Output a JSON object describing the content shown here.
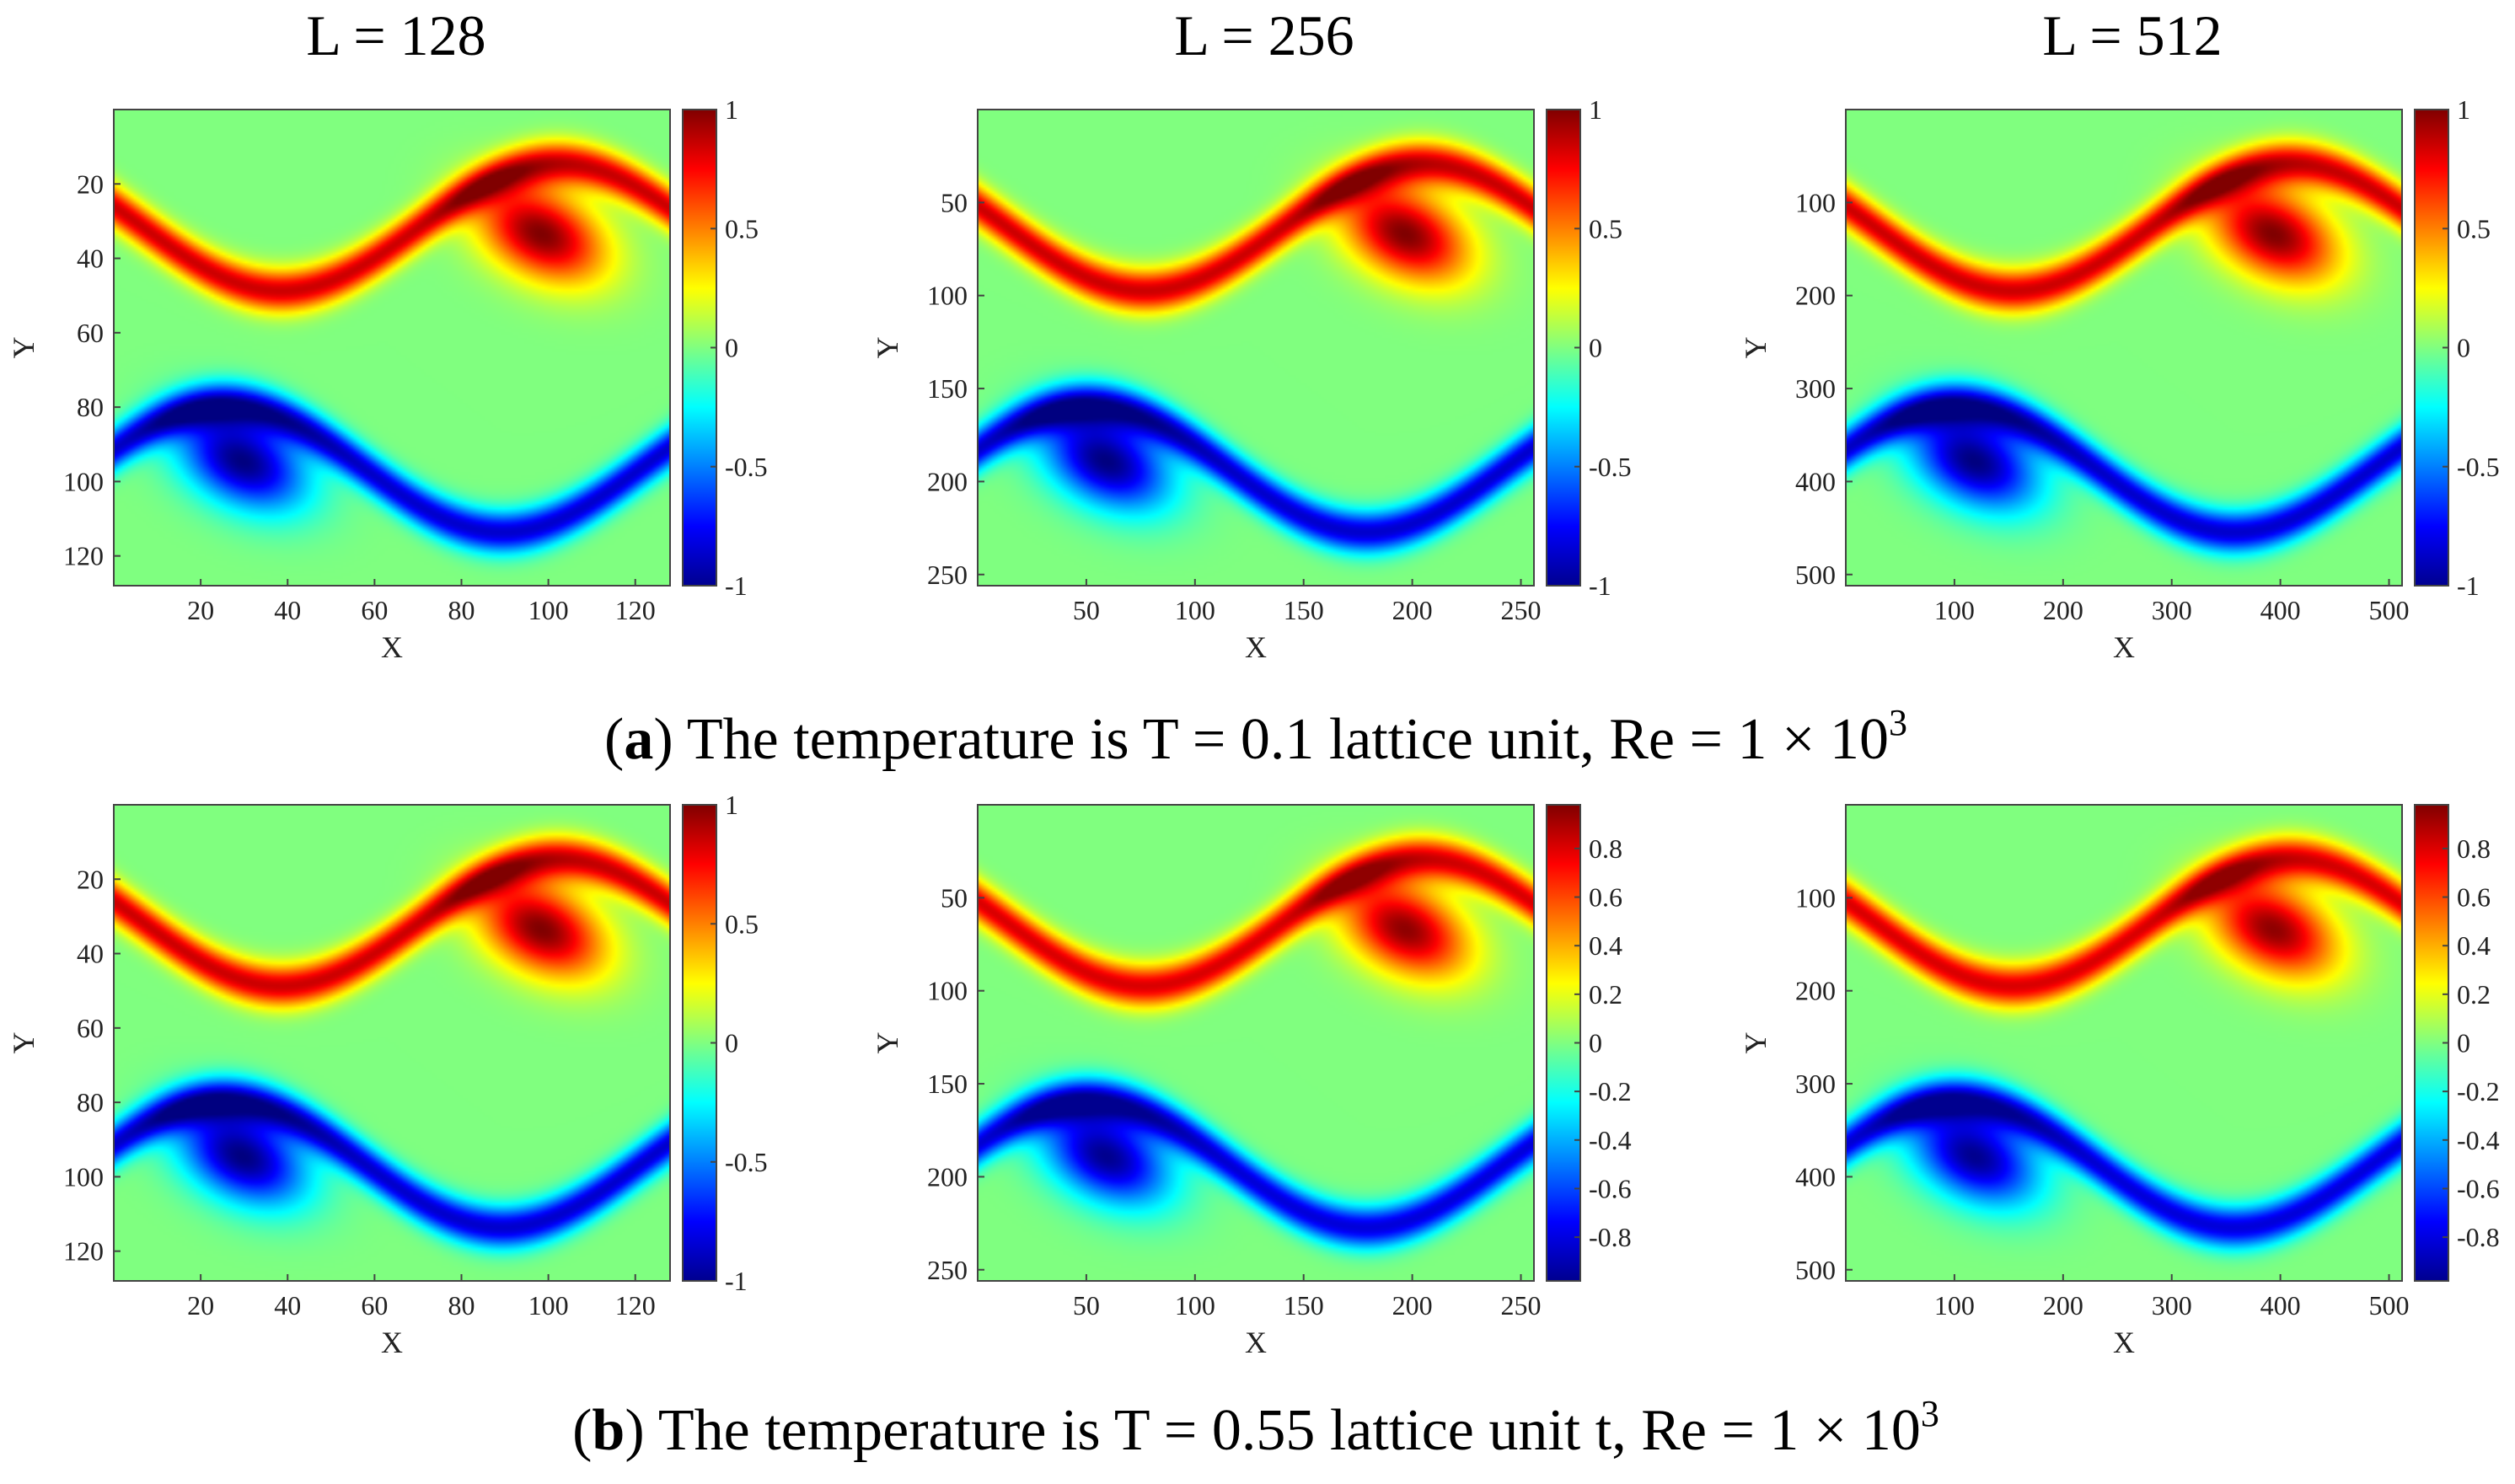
{
  "column_titles": [
    "L = 128",
    "L = 256",
    "L = 512"
  ],
  "captions": {
    "a": {
      "letter": "a",
      "text": " The temperature is T = 0.1 lattice unit, Re = 1 × 10",
      "sup": "3"
    },
    "b": {
      "letter": "b",
      "text": " The temperature is T = 0.55 lattice unit t, Re = 1 × 10",
      "sup": "3"
    }
  },
  "colormap": "jet",
  "chart_data": [
    {
      "type": "heatmap",
      "row": "a",
      "L": 128,
      "xlabel": "X",
      "ylabel": "Y",
      "xlim": [
        0,
        128
      ],
      "ylim": [
        0,
        128
      ],
      "y_reversed": true,
      "x_ticks": [
        20,
        40,
        60,
        80,
        100,
        120
      ],
      "y_ticks": [
        20,
        40,
        60,
        80,
        100,
        120
      ],
      "clim": [
        -1,
        1
      ],
      "cbar_ticks": [
        -1,
        -0.5,
        0,
        0.5,
        1
      ],
      "peak": 1.0
    },
    {
      "type": "heatmap",
      "row": "a",
      "L": 256,
      "xlabel": "X",
      "ylabel": "Y",
      "xlim": [
        0,
        256
      ],
      "ylim": [
        0,
        256
      ],
      "y_reversed": true,
      "x_ticks": [
        50,
        100,
        150,
        200,
        250
      ],
      "y_ticks": [
        50,
        100,
        150,
        200,
        250
      ],
      "clim": [
        -1,
        1
      ],
      "cbar_ticks": [
        -1,
        -0.5,
        0,
        0.5,
        1
      ],
      "peak": 1.0
    },
    {
      "type": "heatmap",
      "row": "a",
      "L": 512,
      "xlabel": "X",
      "ylabel": "Y",
      "xlim": [
        0,
        512
      ],
      "ylim": [
        0,
        512
      ],
      "y_reversed": true,
      "x_ticks": [
        100,
        200,
        300,
        400,
        500
      ],
      "y_ticks": [
        100,
        200,
        300,
        400,
        500
      ],
      "clim": [
        -1,
        1
      ],
      "cbar_ticks": [
        -1,
        -0.5,
        0,
        0.5,
        1
      ],
      "peak": 1.0
    },
    {
      "type": "heatmap",
      "row": "b",
      "L": 128,
      "xlabel": "X",
      "ylabel": "Y",
      "xlim": [
        0,
        128
      ],
      "ylim": [
        0,
        128
      ],
      "y_reversed": true,
      "x_ticks": [
        20,
        40,
        60,
        80,
        100,
        120
      ],
      "y_ticks": [
        20,
        40,
        60,
        80,
        100,
        120
      ],
      "clim": [
        -1,
        1
      ],
      "cbar_ticks": [
        -1,
        -0.5,
        0,
        0.5,
        1
      ],
      "peak": 1.0
    },
    {
      "type": "heatmap",
      "row": "b",
      "L": 256,
      "xlabel": "X",
      "ylabel": "Y",
      "xlim": [
        0,
        256
      ],
      "ylim": [
        0,
        256
      ],
      "y_reversed": true,
      "x_ticks": [
        50,
        100,
        150,
        200,
        250
      ],
      "y_ticks": [
        50,
        100,
        150,
        200,
        250
      ],
      "clim": [
        -0.98,
        0.98
      ],
      "cbar_ticks": [
        -0.8,
        -0.6,
        -0.4,
        -0.2,
        0,
        0.2,
        0.4,
        0.6,
        0.8
      ],
      "peak": 0.97
    },
    {
      "type": "heatmap",
      "row": "b",
      "L": 512,
      "xlabel": "X",
      "ylabel": "Y",
      "xlim": [
        0,
        512
      ],
      "ylim": [
        0,
        512
      ],
      "y_reversed": true,
      "x_ticks": [
        100,
        200,
        300,
        400,
        500
      ],
      "y_ticks": [
        100,
        200,
        300,
        400,
        500
      ],
      "clim": [
        -0.98,
        0.98
      ],
      "cbar_ticks": [
        -0.8,
        -0.6,
        -0.4,
        -0.2,
        0,
        0.2,
        0.4,
        0.6,
        0.8
      ],
      "peak": 0.97
    }
  ]
}
